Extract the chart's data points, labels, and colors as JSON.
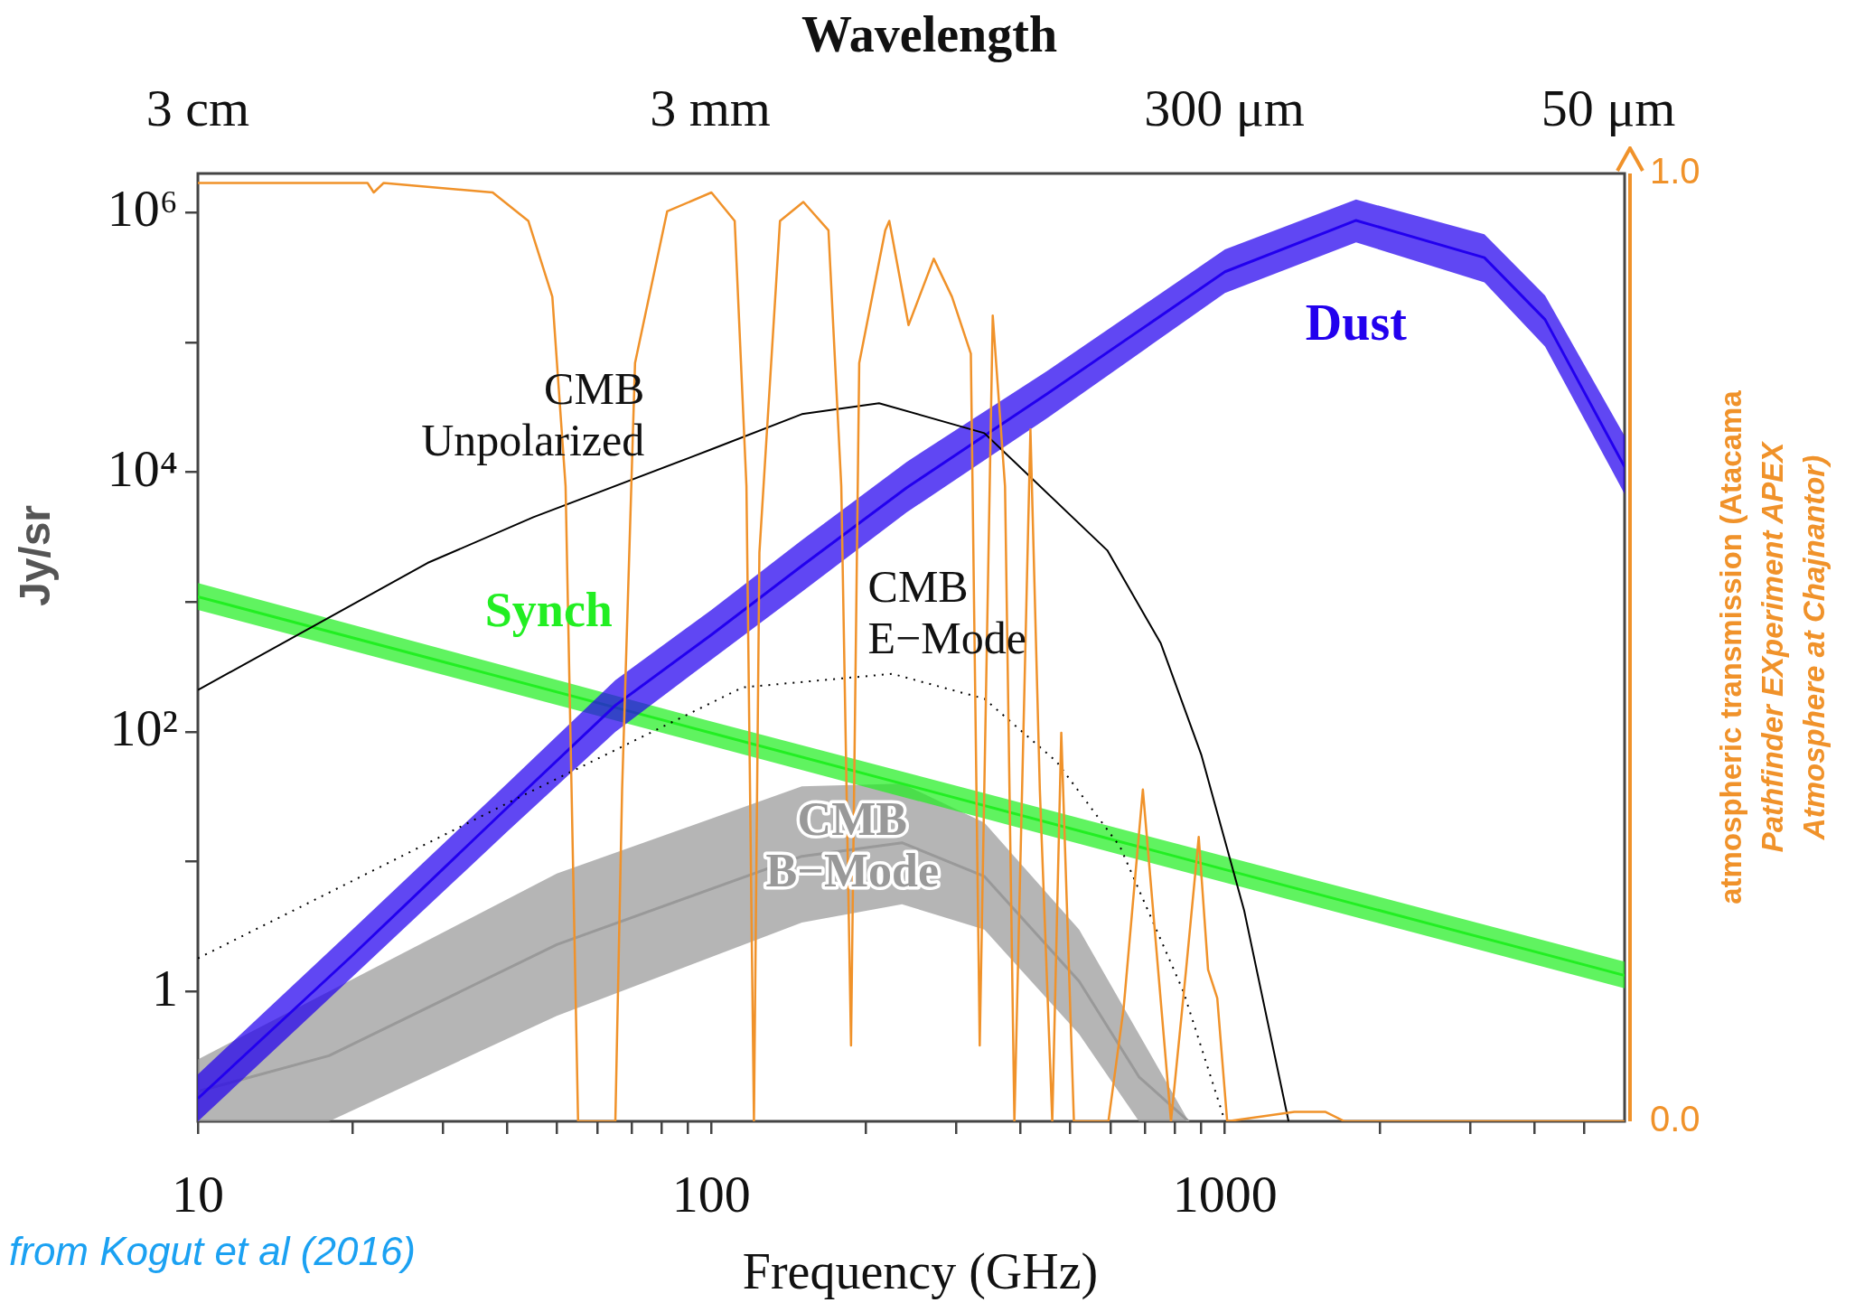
{
  "chart_data": {
    "type": "line",
    "xlabel": "Frequency (GHz)",
    "x2label": "Wavelength",
    "ylabel": "Jy/sr",
    "y2label": "atmospheric transmission (Atacama Pathfinder EXperiment APEX Atmosphere at Chajnantor)",
    "log": "xy",
    "marker": "none",
    "xlim": [
      10,
      6000
    ],
    "xticks": [
      10,
      {
        "value": 20,
        "label": null
      },
      {
        "value": 30,
        "label": null
      },
      {
        "value": 40,
        "label": null
      },
      {
        "value": 50,
        "label": null
      },
      {
        "value": 60,
        "label": null
      },
      {
        "value": 70,
        "label": null
      },
      {
        "value": 80,
        "label": null
      },
      {
        "value": 90,
        "label": null
      },
      100,
      {
        "value": 200,
        "label": null
      },
      {
        "value": 300,
        "label": null
      },
      {
        "value": 400,
        "label": null
      },
      {
        "value": 500,
        "label": null
      },
      {
        "value": 600,
        "label": null
      },
      {
        "value": 700,
        "label": null
      },
      {
        "value": 800,
        "label": null
      },
      {
        "value": 900,
        "label": null
      },
      1000,
      {
        "value": 2000,
        "label": null
      },
      {
        "value": 3000,
        "label": null
      },
      {
        "value": 4000,
        "label": null
      },
      {
        "value": 5000,
        "label": null
      }
    ],
    "ylim": [
      0.1,
      2000000
    ],
    "yticks": [
      {
        "value": 1000000,
        "label": "10⁶"
      },
      {
        "value": 100000,
        "label": null
      },
      {
        "value": 10000,
        "label": "10⁴"
      },
      {
        "value": 1000,
        "label": null
      },
      {
        "value": 100,
        "label": "10²"
      },
      {
        "value": 10,
        "label": null
      },
      1
    ],
    "y2lim": [
      0,
      1.0
    ],
    "y2ticks": [
      {
        "value": 0,
        "label": "0.0"
      },
      {
        "value": 1,
        "label": "1.0"
      }
    ],
    "annotations": [
      "3 cm",
      "3 mm",
      "300 μm",
      "50 μm",
      "from Kogut et al (2016)"
    ],
    "series": [
      {
        "name": "Dust",
        "color": "#2200ee",
        "x": [
          10,
          20,
          40,
          65,
          100,
          150,
          240,
          450,
          1000,
          1800,
          3200,
          4200,
          6000
        ],
        "values": [
          0.15,
          1.9,
          26,
          160,
          560,
          1900,
          7600,
          40000,
          350000,
          870000,
          450000,
          150000,
          11000
        ],
        "upper": [
          0.23,
          3.0,
          40,
          250,
          870,
          3000,
          12000,
          60000,
          520000,
          1260000,
          680000,
          230000,
          19000
        ],
        "lower": [
          0.1,
          1.3,
          17,
          100,
          360,
          1200,
          4900,
          26000,
          240000,
          590000,
          290000,
          93000,
          6800
        ]
      },
      {
        "name": "Synch",
        "color": "#22ee22",
        "x": [
          10,
          100,
          1000,
          6000
        ],
        "values": [
          1100,
          98,
          8.7,
          1.33
        ],
        "upper": [
          1400,
          120,
          11,
          1.7
        ],
        "lower": [
          870,
          78,
          6.9,
          1.06
        ]
      },
      {
        "name": "CMB Unpolarized",
        "color": "#000000",
        "x": [
          10,
          28,
          45,
          100,
          150,
          212,
          340,
          590,
          750,
          900,
          1090,
          1330
        ],
        "values": [
          210,
          2000,
          4500,
          15000,
          28000,
          34000,
          20000,
          2500,
          480,
          66,
          4.2,
          0.1
        ]
      },
      {
        "name": "CMB E−Mode",
        "color": "#000000",
        "line_style": "dotted",
        "x": [
          10,
          42,
          115,
          225,
          340,
          470,
          625,
          830,
          1000
        ],
        "values": [
          1.8,
          31,
          220,
          280,
          180,
          59,
          13,
          1.0,
          0.1
        ]
      },
      {
        "name": "CMB B−Mode",
        "color": "#999999",
        "x": [
          10,
          18,
          50,
          150,
          235,
          340,
          520,
          680,
          850
        ],
        "values": [
          0.17,
          0.32,
          2.3,
          11,
          14,
          7.7,
          1.2,
          0.22,
          0.1
        ],
        "upper": [
          0.3,
          1.0,
          8.1,
          38,
          40,
          20,
          3.0,
          0.47,
          0.1
        ],
        "lower": [
          0.1,
          0.1,
          0.65,
          3.4,
          4.7,
          3.0,
          0.47,
          0.1,
          0.1
        ]
      },
      {
        "color": "#f0922a",
        "axis": "y2",
        "x": [
          10,
          21.4,
          22,
          23,
          37.5,
          44,
          49,
          52,
          55,
          65,
          67,
          71,
          82,
          100,
          111,
          117,
          121,
          124,
          136,
          151,
          169,
          179,
          187,
          194,
          218,
          222,
          242,
          271,
          294,
          320,
          333,
          353,
          373,
          389,
          418,
          436,
          461,
          480,
          508,
          593,
          635,
          692,
          741,
          785,
          840,
          889,
          927,
          966,
          1010,
          1365,
          1570,
          1710,
          6000
        ],
        "values": [
          0.99,
          0.99,
          0.98,
          0.99,
          0.98,
          0.95,
          0.87,
          0.67,
          0.0,
          0.0,
          0.35,
          0.8,
          0.96,
          0.98,
          0.95,
          0.67,
          0.0,
          0.6,
          0.95,
          0.97,
          0.94,
          0.67,
          0.08,
          0.8,
          0.94,
          0.95,
          0.84,
          0.91,
          0.87,
          0.81,
          0.08,
          0.85,
          0.67,
          0.0,
          0.73,
          0.35,
          0.0,
          0.41,
          0.0,
          0.0,
          0.12,
          0.35,
          0.16,
          0.0,
          0.16,
          0.3,
          0.16,
          0.13,
          0.0,
          0.01,
          0.01,
          0.0,
          0.0
        ]
      }
    ]
  }
}
